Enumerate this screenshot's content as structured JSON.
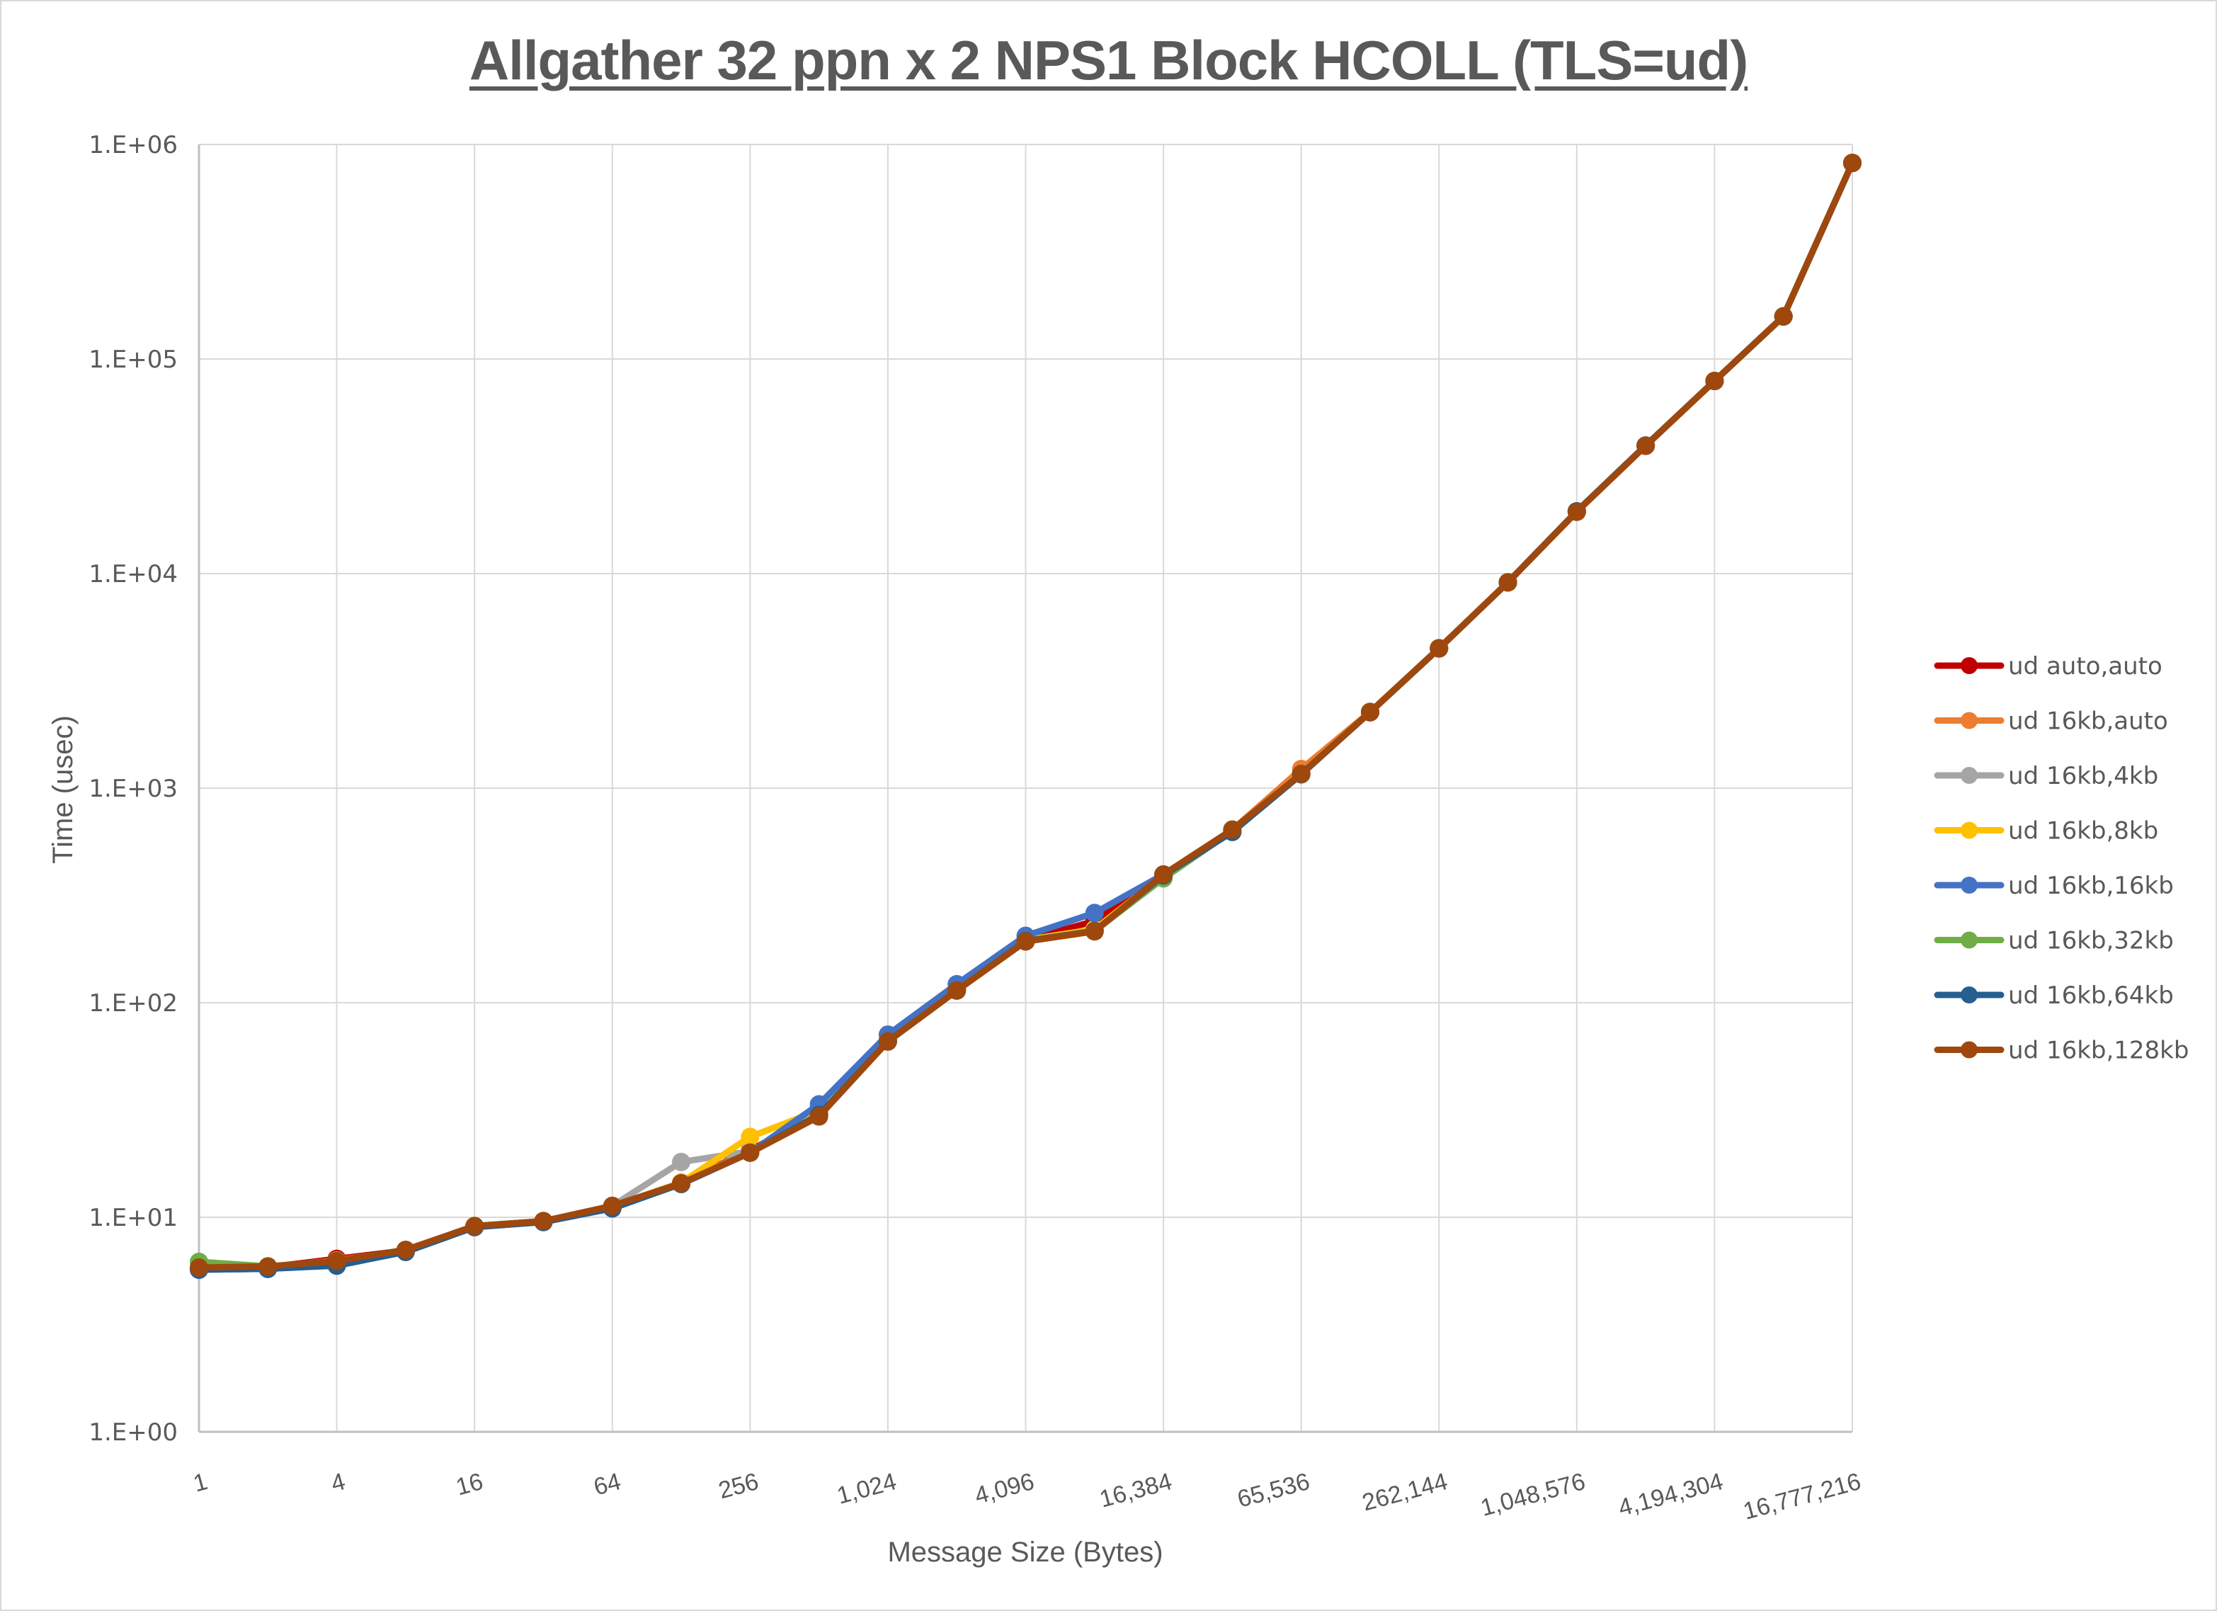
{
  "chart_data": {
    "type": "line",
    "title": "Allgather 32 ppn x 2 NPS1 Block HCOLL (TLS=ud)",
    "xlabel": "Message Size (Bytes)",
    "ylabel": "Time (usec)",
    "yscale": "log",
    "ylim": [
      1,
      1000000
    ],
    "y_ticks": [
      "1.E+00",
      "1.E+01",
      "1.E+02",
      "1.E+03",
      "1.E+04",
      "1.E+05",
      "1.E+06"
    ],
    "x": [
      1,
      2,
      4,
      8,
      16,
      32,
      64,
      128,
      256,
      512,
      1024,
      2048,
      4096,
      8192,
      16384,
      32768,
      65536,
      131072,
      262144,
      524288,
      1048576,
      2097152,
      4194304,
      8388608,
      16777216
    ],
    "x_tick_labels": [
      "1",
      "4",
      "16",
      "64",
      "256",
      "1,024",
      "4,096",
      "16,384",
      "65,536",
      "262,144",
      "1,048,576",
      "4,194,304",
      "16,777,216"
    ],
    "grid": true,
    "legend_position": "right",
    "series": [
      {
        "name": "ud auto,auto",
        "color": "#C00000",
        "values": [
          5.8,
          5.85,
          6.4,
          7.0,
          9.1,
          9.6,
          11.2,
          14.5,
          20.5,
          30.5,
          67,
          116,
          196,
          240,
          395,
          635,
          1170,
          2260,
          4480,
          9100,
          19500,
          39500,
          79000,
          158000,
          820000
        ]
      },
      {
        "name": "ud 16kb,auto",
        "color": "#ED7D31",
        "values": [
          5.8,
          5.85,
          6.3,
          7.0,
          9.1,
          9.6,
          11.2,
          14.5,
          20.3,
          30.0,
          66,
          114,
          194,
          218,
          392,
          640,
          1228,
          2270,
          4490,
          9100,
          19500,
          39500,
          79000,
          158000,
          820000
        ]
      },
      {
        "name": "ud 16kb,4kb",
        "color": "#A5A5A5",
        "values": [
          5.8,
          5.85,
          6.2,
          7.0,
          9.1,
          9.6,
          11.3,
          18.1,
          20.3,
          30.0,
          66,
          114,
          194,
          218,
          392,
          640,
          1165,
          2260,
          4480,
          9100,
          19500,
          39500,
          79000,
          158000,
          820000
        ]
      },
      {
        "name": "ud 16kb,8kb",
        "color": "#FFC000",
        "values": [
          5.8,
          5.9,
          6.2,
          7.0,
          9.1,
          9.6,
          11.2,
          14.5,
          23.7,
          31.5,
          67,
          116,
          196,
          220,
          392,
          640,
          1165,
          2260,
          4480,
          9100,
          19500,
          39500,
          79000,
          158000,
          820000
        ]
      },
      {
        "name": "ud 16kb,16kb",
        "color": "#4472C4",
        "values": [
          5.7,
          5.75,
          6.0,
          6.9,
          9.0,
          9.5,
          11.1,
          14.3,
          20.0,
          33.6,
          71,
          122,
          205,
          262,
          396,
          628,
          1165,
          2260,
          4480,
          9100,
          19500,
          39500,
          79000,
          158000,
          820000
        ]
      },
      {
        "name": "ud 16kb,32kb",
        "color": "#70AD47",
        "values": [
          6.2,
          5.9,
          6.2,
          7.0,
          9.1,
          9.6,
          11.2,
          14.4,
          20.0,
          30.0,
          66,
          114,
          194,
          216,
          380,
          632,
          1165,
          2260,
          4480,
          9100,
          19500,
          39500,
          79000,
          158000,
          820000
        ]
      },
      {
        "name": "ud 16kb,64kb",
        "color": "#255E91",
        "values": [
          5.7,
          5.75,
          5.95,
          6.9,
          9.0,
          9.5,
          11.0,
          14.3,
          20.0,
          30.0,
          66,
          114,
          194,
          216,
          392,
          625,
          1160,
          2260,
          4480,
          9100,
          19500,
          39500,
          79000,
          158000,
          820000
        ]
      },
      {
        "name": "ud 16kb,128kb",
        "color": "#9E480E",
        "values": [
          5.83,
          5.9,
          6.25,
          7.05,
          9.1,
          9.6,
          11.3,
          14.4,
          20.0,
          29.5,
          66,
          114,
          193,
          215,
          396,
          641,
          1165,
          2260,
          4490,
          9100,
          19400,
          39400,
          79000,
          158000,
          820000
        ]
      }
    ]
  }
}
